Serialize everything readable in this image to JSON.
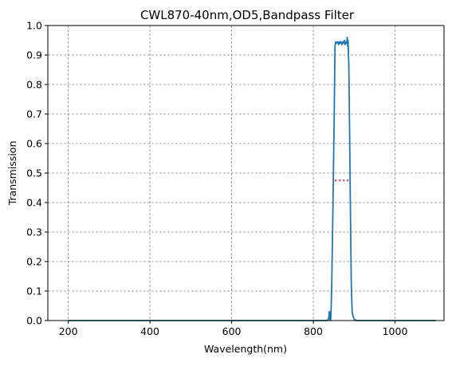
{
  "chart_data": {
    "type": "line",
    "title": "CWL870-40nm,OD5,Bandpass Filter",
    "xlabel": "Wavelength(nm)",
    "ylabel": "Transmission",
    "xlim": [
      150,
      1120
    ],
    "ylim": [
      0,
      1.0
    ],
    "xticks": [
      200,
      400,
      600,
      800,
      1000
    ],
    "yticks": [
      0.0,
      0.1,
      0.2,
      0.3,
      0.4,
      0.5,
      0.6,
      0.7,
      0.8,
      0.9,
      1.0
    ],
    "grid": true,
    "grid_style": "dashed-gray",
    "series": [
      {
        "color": "#1f77b4",
        "x": [
          200,
          400,
          600,
          800,
          835,
          838,
          839,
          840,
          841,
          842,
          843,
          845,
          848,
          851,
          853,
          855,
          857,
          860,
          862,
          864,
          866,
          868,
          870,
          872,
          874,
          876,
          878,
          880,
          882,
          883,
          884,
          885,
          887,
          889,
          891,
          893,
          895,
          897,
          900,
          905,
          1000,
          1100
        ],
        "y": [
          0,
          0,
          0,
          0,
          0.0,
          0.01,
          0.03,
          0.005,
          0.03,
          0.0,
          0.01,
          0.12,
          0.38,
          0.68,
          0.93,
          0.945,
          0.94,
          0.945,
          0.935,
          0.945,
          0.94,
          0.945,
          0.935,
          0.945,
          0.94,
          0.95,
          0.935,
          0.945,
          0.94,
          0.96,
          0.93,
          0.95,
          0.86,
          0.62,
          0.35,
          0.12,
          0.03,
          0.015,
          0.005,
          0,
          0,
          0
        ]
      },
      {
        "color": "#d62728",
        "style": "dotted",
        "x": [
          853,
          890
        ],
        "y": [
          0.475,
          0.475
        ]
      }
    ]
  }
}
